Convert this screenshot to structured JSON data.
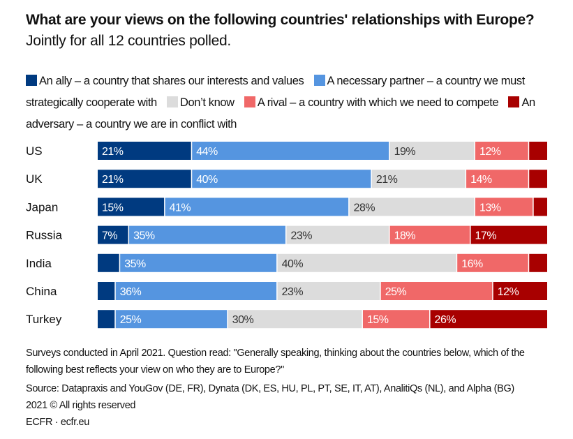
{
  "title": {
    "bold": "What are your views on the following countries' relationships with Europe?",
    "regular": "Jointly for all 12 countries polled."
  },
  "chart_data": {
    "type": "bar",
    "orientation": "horizontal",
    "stacked": true,
    "title": "What are your views on the following countries' relationships with Europe? Jointly for all 12 countries polled.",
    "xlabel": "",
    "ylabel": "",
    "xlim": [
      0,
      100
    ],
    "grid": false,
    "legend_position": "top",
    "categories": [
      "US",
      "UK",
      "Japan",
      "Russia",
      "India",
      "China",
      "Turkey"
    ],
    "series": [
      {
        "name": "An ally – a country that shares our interests and values",
        "color": "#003A80",
        "values": [
          21,
          21,
          15,
          7,
          5,
          4,
          4
        ],
        "labels": [
          "21%",
          "21%",
          "15%",
          "7%",
          "",
          "",
          ""
        ],
        "label_color": "#ffffff"
      },
      {
        "name": "A necessary partner – a country we must strategically cooperate with",
        "color": "#5595E0",
        "values": [
          44,
          40,
          41,
          35,
          35,
          36,
          25
        ],
        "labels": [
          "44%",
          "40%",
          "41%",
          "35%",
          "35%",
          "36%",
          "25%"
        ],
        "label_color": "#ffffff"
      },
      {
        "name": "Don't know",
        "color": "#DCDCDC",
        "values": [
          19,
          21,
          28,
          23,
          40,
          23,
          30
        ],
        "labels": [
          "19%",
          "21%",
          "28%",
          "23%",
          "40%",
          "23%",
          "30%"
        ],
        "label_color": "#333333"
      },
      {
        "name": "A rival – a country with which we need to compete",
        "color": "#F06868",
        "values": [
          12,
          14,
          13,
          18,
          16,
          25,
          15
        ],
        "labels": [
          "12%",
          "14%",
          "13%",
          "18%",
          "16%",
          "25%",
          "15%"
        ],
        "label_color": "#ffffff"
      },
      {
        "name": "An adversary – a country we are in conflict with",
        "color": "#A80000",
        "values": [
          4,
          4,
          3,
          17,
          4,
          12,
          26
        ],
        "labels": [
          "",
          "",
          "",
          "17%",
          "",
          "12%",
          "26%"
        ],
        "label_color": "#ffffff"
      }
    ]
  },
  "legend": [
    {
      "label": "An ally – a country that shares our interests and values",
      "color": "#003A80"
    },
    {
      "label": "A necessary partner – a country we must strategically cooperate with",
      "color": "#5595E0"
    },
    {
      "label": "Don’t know",
      "color": "#DCDCDC"
    },
    {
      "label": "A rival – a country with which we need to compete",
      "color": "#F06868"
    },
    {
      "label": "An adversary – a country we are in conflict with",
      "color": "#A80000"
    }
  ],
  "footer": {
    "note": "Surveys conducted in April 2021. Question read: \"Generally speaking, thinking about the countries below, which of the following best reflects your view on who they are to Europe?\"",
    "source": "Source: Datapraxis and YouGov (DE, FR), Dynata (DK, ES, HU, PL, PT, SE, IT, AT), AnalitiQs (NL), and Alpha (BG)",
    "copyright": "2021 © All rights reserved",
    "credit": "ECFR · ecfr.eu"
  }
}
